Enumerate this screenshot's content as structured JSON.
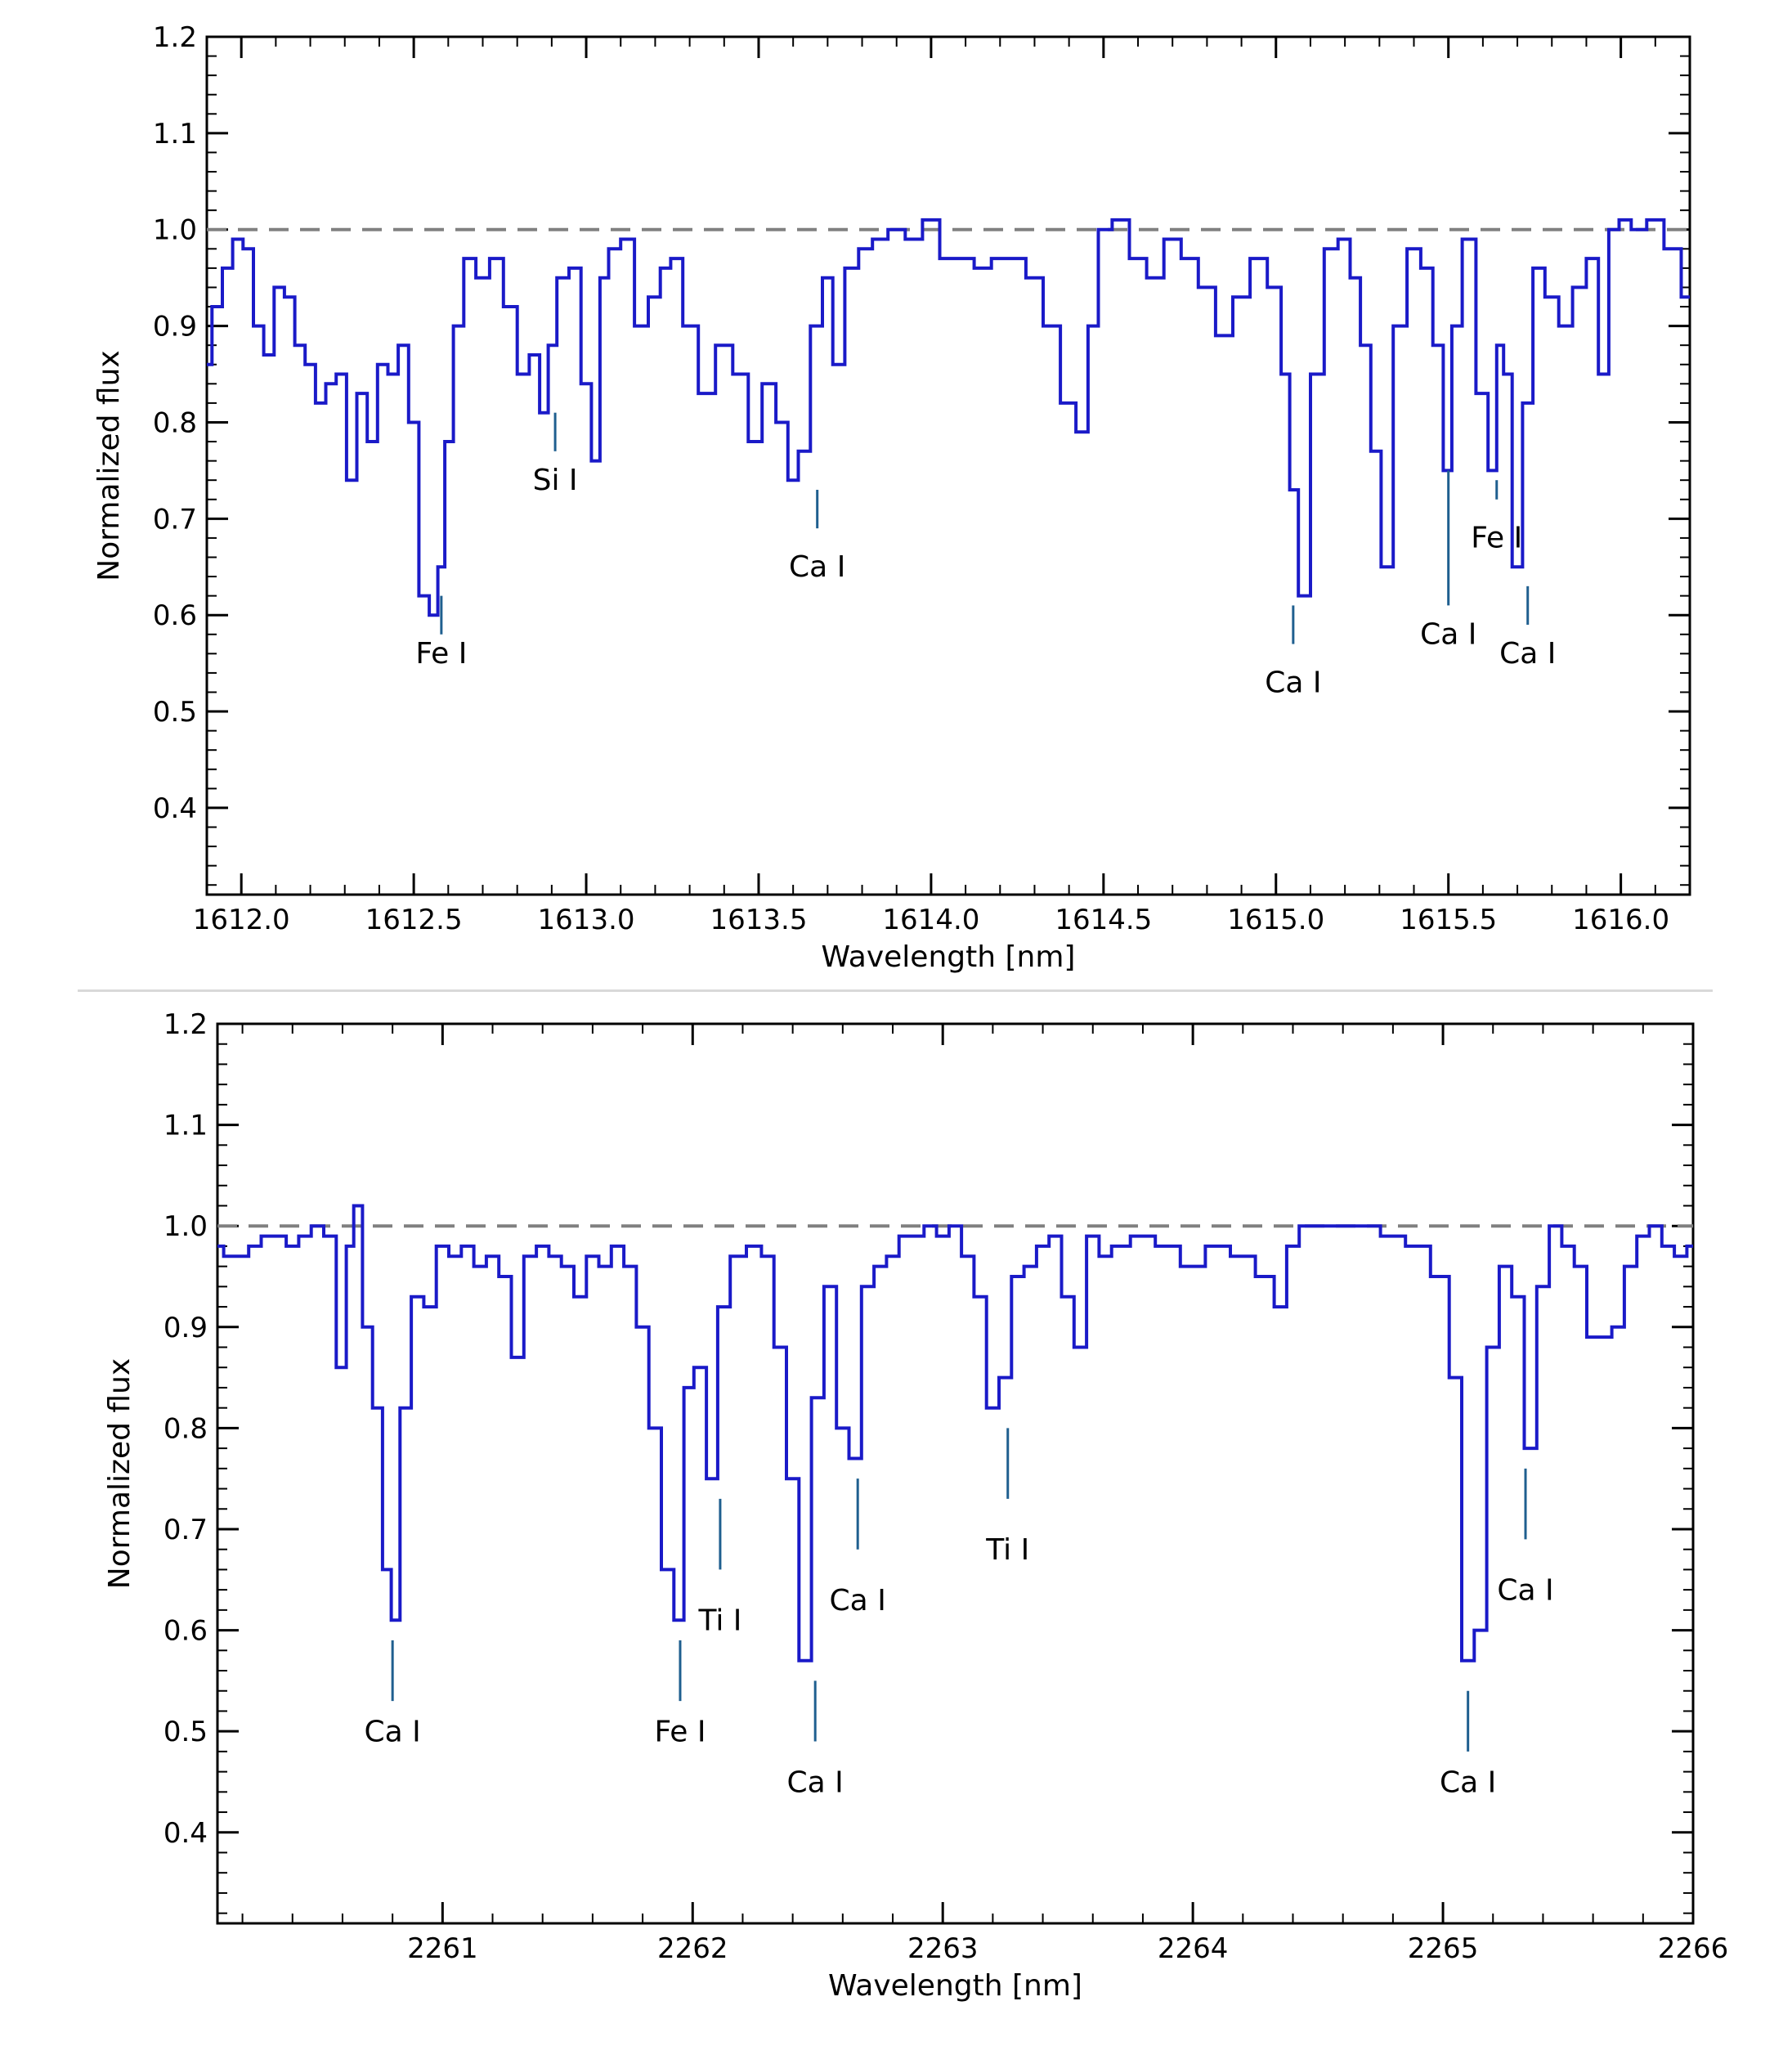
{
  "colors": {
    "spectrum": "#1a1ac8",
    "reference_line": "#808080",
    "marker": "#1f5f8f",
    "axis": "#000000"
  },
  "chart_data": [
    {
      "type": "line",
      "xlabel": "Wavelength [nm]",
      "ylabel": "Normalized flux",
      "xlim": [
        1611.9,
        1616.2
      ],
      "ylim": [
        0.31,
        1.2
      ],
      "xticks": [
        1612.0,
        1612.5,
        1613.0,
        1613.5,
        1614.0,
        1614.5,
        1615.0,
        1615.5,
        1616.0
      ],
      "xtick_labels": [
        "1612.0",
        "1612.5",
        "1613.0",
        "1613.5",
        "1614.0",
        "1614.5",
        "1615.0",
        "1615.5",
        "1616.0"
      ],
      "yticks": [
        0.4,
        0.5,
        0.6,
        0.7,
        0.8,
        0.9,
        1.0,
        1.1,
        1.2
      ],
      "ytick_labels": [
        "0.4",
        "0.5",
        "0.6",
        "0.7",
        "0.8",
        "0.9",
        "1.0",
        "1.1",
        "1.2"
      ],
      "reference_line": 1.0,
      "series": [
        {
          "x": [
            1611.9,
            1611.93,
            1611.96,
            1611.99,
            1612.02,
            1612.05,
            1612.08,
            1612.11,
            1612.14,
            1612.17,
            1612.2,
            1612.23,
            1612.26,
            1612.29,
            1612.32,
            1612.35,
            1612.38,
            1612.41,
            1612.44,
            1612.47,
            1612.5,
            1612.53,
            1612.56,
            1612.58,
            1612.6,
            1612.63,
            1612.66,
            1612.7,
            1612.74,
            1612.78,
            1612.82,
            1612.85,
            1612.88,
            1612.9,
            1612.93,
            1612.97,
            1613.0,
            1613.03,
            1613.05,
            1613.08,
            1613.12,
            1613.16,
            1613.2,
            1613.23,
            1613.26,
            1613.3,
            1613.35,
            1613.4,
            1613.45,
            1613.49,
            1613.53,
            1613.57,
            1613.6,
            1613.63,
            1613.67,
            1613.7,
            1613.73,
            1613.77,
            1613.81,
            1613.85,
            1613.9,
            1613.95,
            1614.0,
            1614.05,
            1614.1,
            1614.15,
            1614.2,
            1614.25,
            1614.3,
            1614.35,
            1614.4,
            1614.44,
            1614.47,
            1614.5,
            1614.55,
            1614.6,
            1614.65,
            1614.7,
            1614.75,
            1614.8,
            1614.85,
            1614.9,
            1614.95,
            1615.0,
            1615.03,
            1615.05,
            1615.08,
            1615.12,
            1615.16,
            1615.2,
            1615.23,
            1615.26,
            1615.29,
            1615.32,
            1615.36,
            1615.4,
            1615.44,
            1615.47,
            1615.5,
            1615.52,
            1615.56,
            1615.6,
            1615.63,
            1615.65,
            1615.67,
            1615.7,
            1615.73,
            1615.76,
            1615.8,
            1615.84,
            1615.88,
            1615.92,
            1615.95,
            1615.98,
            1616.01,
            1616.05,
            1616.1,
            1616.15,
            1616.2
          ],
          "y": [
            0.86,
            0.92,
            0.96,
            0.99,
            0.98,
            0.9,
            0.87,
            0.94,
            0.93,
            0.88,
            0.86,
            0.82,
            0.84,
            0.85,
            0.74,
            0.83,
            0.78,
            0.86,
            0.85,
            0.88,
            0.8,
            0.62,
            0.6,
            0.65,
            0.78,
            0.9,
            0.97,
            0.95,
            0.97,
            0.92,
            0.85,
            0.87,
            0.81,
            0.88,
            0.95,
            0.96,
            0.84,
            0.76,
            0.95,
            0.98,
            0.99,
            0.9,
            0.93,
            0.96,
            0.97,
            0.9,
            0.83,
            0.88,
            0.85,
            0.78,
            0.84,
            0.8,
            0.74,
            0.77,
            0.9,
            0.95,
            0.86,
            0.96,
            0.98,
            0.99,
            1.0,
            0.99,
            1.01,
            0.97,
            0.97,
            0.96,
            0.97,
            0.97,
            0.95,
            0.9,
            0.82,
            0.79,
            0.9,
            1.0,
            1.01,
            0.97,
            0.95,
            0.99,
            0.97,
            0.94,
            0.89,
            0.93,
            0.97,
            0.94,
            0.85,
            0.73,
            0.62,
            0.85,
            0.98,
            0.99,
            0.95,
            0.88,
            0.77,
            0.65,
            0.9,
            0.98,
            0.96,
            0.88,
            0.75,
            0.9,
            0.99,
            0.83,
            0.75,
            0.88,
            0.85,
            0.65,
            0.82,
            0.96,
            0.93,
            0.9,
            0.94,
            0.97,
            0.85,
            1.0,
            1.01,
            1.0,
            1.01,
            0.98,
            0.93
          ]
        }
      ],
      "annotations": [
        {
          "label": "Fe I",
          "x": 1612.58,
          "y_tip": 0.62,
          "y_end": 0.58,
          "text_y": 0.55
        },
        {
          "label": "Si I",
          "x": 1612.91,
          "y_tip": 0.81,
          "y_end": 0.77,
          "text_y": 0.73
        },
        {
          "label": "Ca I",
          "x": 1613.67,
          "y_tip": 0.73,
          "y_end": 0.69,
          "text_y": 0.64
        },
        {
          "label": "Ca I",
          "x": 1615.05,
          "y_tip": 0.61,
          "y_end": 0.57,
          "text_y": 0.52
        },
        {
          "label": "Ca I",
          "x": 1615.5,
          "y_tip": 0.75,
          "y_end": 0.61,
          "text_y": 0.57
        },
        {
          "label": "Fe I",
          "x": 1615.64,
          "y_tip": 0.74,
          "y_end": 0.72,
          "text_y": 0.67
        },
        {
          "label": "Ca I",
          "x": 1615.73,
          "y_tip": 0.63,
          "y_end": 0.59,
          "text_y": 0.55
        }
      ]
    },
    {
      "type": "line",
      "xlabel": "Wavelength [nm]",
      "ylabel": "Normalized flux",
      "xlim": [
        2260.1,
        2266.0
      ],
      "ylim": [
        0.31,
        1.2
      ],
      "xticks": [
        2261,
        2262,
        2263,
        2264,
        2265,
        2266
      ],
      "xtick_labels": [
        "2261",
        "2262",
        "2263",
        "2264",
        "2265",
        "2266"
      ],
      "yticks": [
        0.4,
        0.5,
        0.6,
        0.7,
        0.8,
        0.9,
        1.0,
        1.1,
        1.2
      ],
      "ytick_labels": [
        "0.4",
        "0.5",
        "0.6",
        "0.7",
        "0.8",
        "0.9",
        "1.0",
        "1.1",
        "1.2"
      ],
      "reference_line": 1.0,
      "series": [
        {
          "x": [
            2260.1,
            2260.15,
            2260.2,
            2260.25,
            2260.3,
            2260.35,
            2260.4,
            2260.45,
            2260.5,
            2260.55,
            2260.6,
            2260.63,
            2260.66,
            2260.7,
            2260.74,
            2260.78,
            2260.81,
            2260.85,
            2260.9,
            2260.95,
            2261.0,
            2261.05,
            2261.1,
            2261.15,
            2261.2,
            2261.25,
            2261.3,
            2261.35,
            2261.4,
            2261.45,
            2261.5,
            2261.55,
            2261.6,
            2261.65,
            2261.7,
            2261.75,
            2261.8,
            2261.85,
            2261.9,
            2261.95,
            2261.98,
            2262.03,
            2262.08,
            2262.12,
            2262.18,
            2262.25,
            2262.3,
            2262.35,
            2262.4,
            2262.45,
            2262.5,
            2262.55,
            2262.6,
            2262.65,
            2262.7,
            2262.75,
            2262.8,
            2262.85,
            2262.9,
            2262.95,
            2263.0,
            2263.05,
            2263.1,
            2263.15,
            2263.2,
            2263.25,
            2263.3,
            2263.35,
            2263.4,
            2263.45,
            2263.5,
            2263.55,
            2263.6,
            2263.65,
            2263.7,
            2263.8,
            2263.9,
            2264.0,
            2264.1,
            2264.2,
            2264.3,
            2264.35,
            2264.4,
            2264.45,
            2264.5,
            2264.6,
            2264.7,
            2264.8,
            2264.9,
            2265.0,
            2265.05,
            2265.1,
            2265.15,
            2265.2,
            2265.25,
            2265.3,
            2265.35,
            2265.4,
            2265.45,
            2265.5,
            2265.55,
            2265.6,
            2265.65,
            2265.7,
            2265.75,
            2265.8,
            2265.85,
            2265.9,
            2265.95,
            2266.0
          ],
          "y": [
            0.98,
            0.97,
            0.97,
            0.98,
            0.99,
            0.99,
            0.98,
            0.99,
            1.0,
            0.99,
            0.86,
            0.98,
            1.02,
            0.9,
            0.82,
            0.66,
            0.61,
            0.82,
            0.93,
            0.92,
            0.98,
            0.97,
            0.98,
            0.96,
            0.97,
            0.95,
            0.87,
            0.97,
            0.98,
            0.97,
            0.96,
            0.93,
            0.97,
            0.96,
            0.98,
            0.96,
            0.9,
            0.8,
            0.66,
            0.61,
            0.84,
            0.86,
            0.75,
            0.92,
            0.97,
            0.98,
            0.97,
            0.88,
            0.75,
            0.57,
            0.83,
            0.94,
            0.8,
            0.77,
            0.94,
            0.96,
            0.97,
            0.99,
            0.99,
            1.0,
            0.99,
            1.0,
            0.97,
            0.93,
            0.82,
            0.85,
            0.95,
            0.96,
            0.98,
            0.99,
            0.93,
            0.88,
            0.99,
            0.97,
            0.98,
            0.99,
            0.98,
            0.96,
            0.98,
            0.97,
            0.95,
            0.92,
            0.98,
            1.0,
            1.0,
            1.0,
            1.0,
            0.99,
            0.98,
            0.95,
            0.85,
            0.57,
            0.6,
            0.88,
            0.96,
            0.93,
            0.78,
            0.94,
            1.0,
            0.98,
            0.96,
            0.89,
            0.89,
            0.9,
            0.96,
            0.99,
            1.0,
            0.98,
            0.97,
            0.98
          ]
        }
      ],
      "annotations": [
        {
          "label": "Ca I",
          "x": 2260.8,
          "y_tip": 0.59,
          "y_end": 0.53,
          "text_y": 0.49
        },
        {
          "label": "Fe I",
          "x": 2261.95,
          "y_tip": 0.59,
          "y_end": 0.53,
          "text_y": 0.49
        },
        {
          "label": "Ti I",
          "x": 2262.11,
          "y_tip": 0.73,
          "y_end": 0.66,
          "text_y": 0.6
        },
        {
          "label": "Ca I",
          "x": 2262.49,
          "y_tip": 0.55,
          "y_end": 0.49,
          "text_y": 0.44
        },
        {
          "label": "Ca I",
          "x": 2262.66,
          "y_tip": 0.75,
          "y_end": 0.68,
          "text_y": 0.62
        },
        {
          "label": "Ti I",
          "x": 2263.26,
          "y_tip": 0.8,
          "y_end": 0.73,
          "text_y": 0.67
        },
        {
          "label": "Ca I",
          "x": 2265.1,
          "y_tip": 0.54,
          "y_end": 0.48,
          "text_y": 0.44
        },
        {
          "label": "Ca I",
          "x": 2265.33,
          "y_tip": 0.76,
          "y_end": 0.69,
          "text_y": 0.63
        }
      ]
    }
  ]
}
